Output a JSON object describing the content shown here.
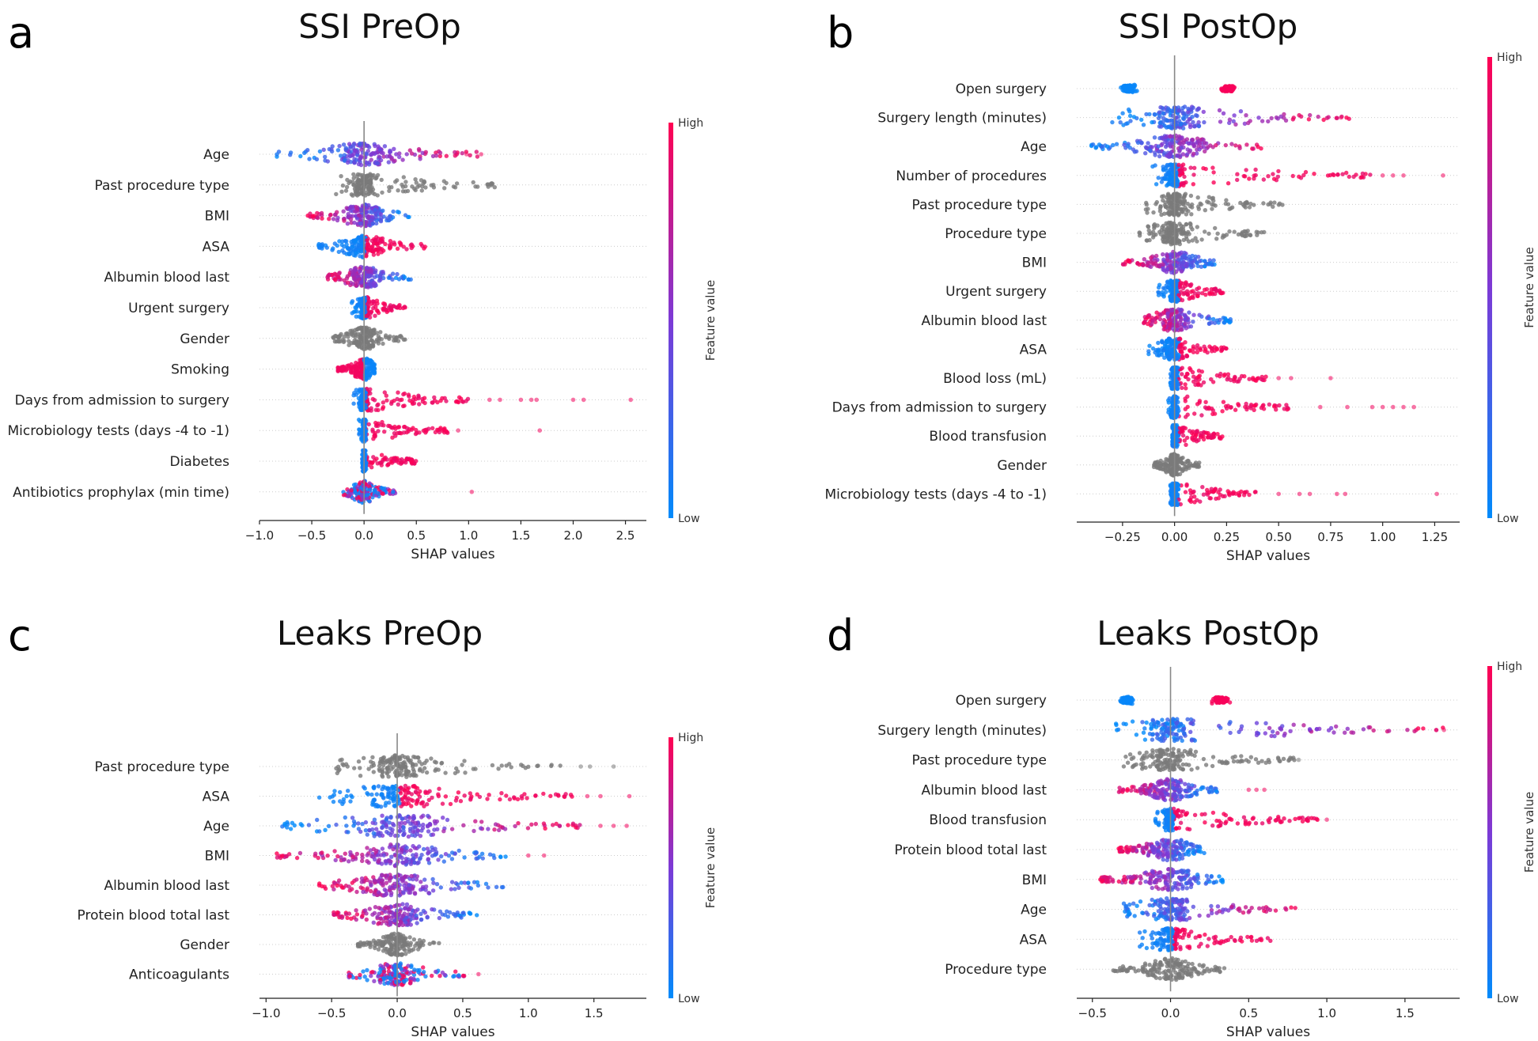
{
  "chart_data": [
    {
      "type": "scatter",
      "subtype": "shap-beeswarm",
      "panel_label": "a",
      "title": "SSI PreOp",
      "xlabel": "SHAP values",
      "xlim": [
        -1.0,
        2.7
      ],
      "xticks": [
        -1.0,
        -0.5,
        0.0,
        0.5,
        1.0,
        1.5,
        2.0,
        2.5
      ],
      "xtick_labels": [
        "−1.0",
        "−0.5",
        "0.0",
        "0.5",
        "1.0",
        "1.5",
        "2.0",
        "2.5"
      ],
      "colorbar": {
        "label": "Feature value",
        "high": "High",
        "low": "Low"
      },
      "features": [
        {
          "name": "Age",
          "range": [
            -0.85,
            1.12
          ],
          "pattern": "gradient-lowhigh",
          "outliers": [
            0.98,
            1.12
          ]
        },
        {
          "name": "Past procedure type",
          "range": [
            -0.3,
            1.25
          ],
          "pattern": "gray",
          "outliers": []
        },
        {
          "name": "BMI",
          "range": [
            -0.55,
            0.5
          ],
          "pattern": "gradient-highlow",
          "outliers": []
        },
        {
          "name": "ASA",
          "range": [
            -0.45,
            0.6
          ],
          "pattern": "split",
          "outliers": []
        },
        {
          "name": "Albumin blood last",
          "range": [
            -0.35,
            0.45
          ],
          "pattern": "gradient-highlow",
          "outliers": []
        },
        {
          "name": "Urgent surgery",
          "range": [
            -0.12,
            0.4
          ],
          "pattern": "split",
          "outliers": []
        },
        {
          "name": "Gender",
          "range": [
            -0.3,
            0.4
          ],
          "pattern": "gray",
          "outliers": []
        },
        {
          "name": "Smoking",
          "range": [
            -0.25,
            0.1
          ],
          "pattern": "split-reverse",
          "outliers": []
        },
        {
          "name": "Days from admission to surgery",
          "range": [
            -0.1,
            1.0
          ],
          "pattern": "split",
          "outliers": [
            1.2,
            1.3,
            1.5,
            1.6,
            1.65,
            2.0,
            2.1,
            2.55
          ]
        },
        {
          "name": "Microbiology tests (days -4 to -1)",
          "range": [
            -0.05,
            0.8
          ],
          "pattern": "split",
          "outliers": [
            0.9,
            1.68
          ]
        },
        {
          "name": "Diabetes",
          "range": [
            -0.02,
            0.5
          ],
          "pattern": "split",
          "outliers": []
        },
        {
          "name": "Antibiotics prophylax (min time)",
          "range": [
            -0.2,
            0.3
          ],
          "pattern": "mixed",
          "outliers": [
            1.03
          ]
        }
      ]
    },
    {
      "type": "scatter",
      "subtype": "shap-beeswarm",
      "panel_label": "b",
      "title": "SSI PostOp",
      "xlabel": "SHAP values",
      "xlim": [
        -0.47,
        1.37
      ],
      "xticks": [
        -0.25,
        0.0,
        0.25,
        0.5,
        0.75,
        1.0,
        1.25
      ],
      "xtick_labels": [
        "−0.25",
        "0.00",
        "0.25",
        "0.50",
        "0.75",
        "1.00",
        "1.25"
      ],
      "colorbar": {
        "label": "Feature value",
        "high": "High",
        "low": "Low"
      },
      "features": [
        {
          "name": "Open surgery",
          "range": [
            -0.27,
            0.32
          ],
          "pattern": "two-cluster",
          "outliers": []
        },
        {
          "name": "Surgery length (minutes)",
          "range": [
            -0.3,
            0.85
          ],
          "pattern": "gradient-lowhigh",
          "outliers": [
            0.8
          ]
        },
        {
          "name": "Age",
          "range": [
            -0.4,
            0.42
          ],
          "pattern": "gradient-lowhigh",
          "outliers": []
        },
        {
          "name": "Number of procedures",
          "range": [
            -0.12,
            0.95
          ],
          "pattern": "split",
          "outliers": [
            1.0,
            1.05,
            1.1,
            1.29
          ]
        },
        {
          "name": "Past procedure type",
          "range": [
            -0.15,
            0.52
          ],
          "pattern": "gray",
          "outliers": []
        },
        {
          "name": "Procedure type",
          "range": [
            -0.17,
            0.44
          ],
          "pattern": "gray",
          "outliers": []
        },
        {
          "name": "BMI",
          "range": [
            -0.25,
            0.22
          ],
          "pattern": "gradient-highlow",
          "outliers": []
        },
        {
          "name": "Urgent surgery",
          "range": [
            -0.08,
            0.24
          ],
          "pattern": "split",
          "outliers": []
        },
        {
          "name": "Albumin blood last",
          "range": [
            -0.15,
            0.27
          ],
          "pattern": "gradient-highlow",
          "outliers": []
        },
        {
          "name": "ASA",
          "range": [
            -0.13,
            0.25
          ],
          "pattern": "split",
          "outliers": []
        },
        {
          "name": "Blood loss (mL)",
          "range": [
            -0.02,
            0.45
          ],
          "pattern": "split",
          "outliers": [
            0.5,
            0.56,
            0.75
          ]
        },
        {
          "name": "Days from admission to surgery",
          "range": [
            -0.03,
            0.55
          ],
          "pattern": "split",
          "outliers": [
            0.7,
            0.83,
            0.95,
            1.0,
            1.05,
            1.1,
            1.15
          ]
        },
        {
          "name": "Blood transfusion",
          "range": [
            -0.01,
            0.23
          ],
          "pattern": "split",
          "outliers": []
        },
        {
          "name": "Gender",
          "range": [
            -0.1,
            0.12
          ],
          "pattern": "gray",
          "outliers": []
        },
        {
          "name": "Microbiology tests (days -4 to -1)",
          "range": [
            -0.02,
            0.4
          ],
          "pattern": "split",
          "outliers": [
            0.5,
            0.6,
            0.65,
            0.78,
            0.82,
            1.26
          ]
        }
      ]
    },
    {
      "type": "scatter",
      "subtype": "shap-beeswarm",
      "panel_label": "c",
      "title": "Leaks PreOp",
      "xlabel": "SHAP values",
      "xlim": [
        -1.05,
        1.9
      ],
      "xticks": [
        -1.0,
        -0.5,
        0.0,
        0.5,
        1.0,
        1.5
      ],
      "xtick_labels": [
        "−1.0",
        "−0.5",
        "0.0",
        "0.5",
        "1.0",
        "1.5"
      ],
      "colorbar": {
        "label": "Feature value",
        "high": "High",
        "low": "Low"
      },
      "features": [
        {
          "name": "Past procedure type",
          "range": [
            -0.47,
            1.3
          ],
          "pattern": "gray",
          "outliers": [
            1.4,
            1.47,
            1.65
          ]
        },
        {
          "name": "ASA",
          "range": [
            -0.6,
            1.35
          ],
          "pattern": "split",
          "outliers": [
            1.45,
            1.55,
            1.77
          ]
        },
        {
          "name": "Age",
          "range": [
            -0.88,
            1.45
          ],
          "pattern": "gradient-lowhigh",
          "outliers": [
            1.55,
            1.65,
            1.75
          ]
        },
        {
          "name": "BMI",
          "range": [
            -0.93,
            0.95
          ],
          "pattern": "gradient-highlow",
          "outliers": [
            1.0,
            1.12
          ]
        },
        {
          "name": "Albumin blood last",
          "range": [
            -0.6,
            0.85
          ],
          "pattern": "gradient-highlow",
          "outliers": []
        },
        {
          "name": "Protein blood total last",
          "range": [
            -0.5,
            0.62
          ],
          "pattern": "gradient-highlow",
          "outliers": []
        },
        {
          "name": "Gender",
          "range": [
            -0.3,
            0.32
          ],
          "pattern": "gray",
          "outliers": []
        },
        {
          "name": "Anticoagulants",
          "range": [
            -0.37,
            0.55
          ],
          "pattern": "mixed",
          "outliers": [
            0.62
          ]
        }
      ]
    },
    {
      "type": "scatter",
      "subtype": "shap-beeswarm",
      "panel_label": "d",
      "title": "Leaks PostOp",
      "xlabel": "SHAP values",
      "xlim": [
        -0.6,
        1.85
      ],
      "xticks": [
        -0.5,
        0.0,
        0.5,
        1.0,
        1.5
      ],
      "xtick_labels": [
        "−0.5",
        "0.0",
        "0.5",
        "1.0",
        "1.5"
      ],
      "colorbar": {
        "label": "Feature value",
        "high": "High",
        "low": "Low"
      },
      "features": [
        {
          "name": "Open surgery",
          "range": [
            -0.35,
            0.4
          ],
          "pattern": "two-cluster",
          "outliers": []
        },
        {
          "name": "Surgery length (minutes)",
          "range": [
            -0.35,
            1.75
          ],
          "pattern": "gradient-lowhigh",
          "outliers": [
            1.7,
            1.75
          ]
        },
        {
          "name": "Past procedure type",
          "range": [
            -0.3,
            0.8
          ],
          "pattern": "gray",
          "outliers": [
            0.82
          ]
        },
        {
          "name": "Albumin blood last",
          "range": [
            -0.33,
            0.32
          ],
          "pattern": "gradient-highlow",
          "outliers": [
            0.5,
            0.55,
            0.6
          ]
        },
        {
          "name": "Blood transfusion",
          "range": [
            -0.1,
            0.95
          ],
          "pattern": "split",
          "outliers": [
            1.0
          ]
        },
        {
          "name": "Protein blood total last",
          "range": [
            -0.35,
            0.22
          ],
          "pattern": "gradient-highlow",
          "outliers": []
        },
        {
          "name": "BMI",
          "range": [
            -0.45,
            0.35
          ],
          "pattern": "gradient-highlow",
          "outliers": []
        },
        {
          "name": "Age",
          "range": [
            -0.3,
            0.8
          ],
          "pattern": "gradient-lowhigh",
          "outliers": []
        },
        {
          "name": "ASA",
          "range": [
            -0.2,
            0.65
          ],
          "pattern": "split",
          "outliers": []
        },
        {
          "name": "Procedure type",
          "range": [
            -0.38,
            0.35
          ],
          "pattern": "gray",
          "outliers": []
        }
      ]
    }
  ]
}
